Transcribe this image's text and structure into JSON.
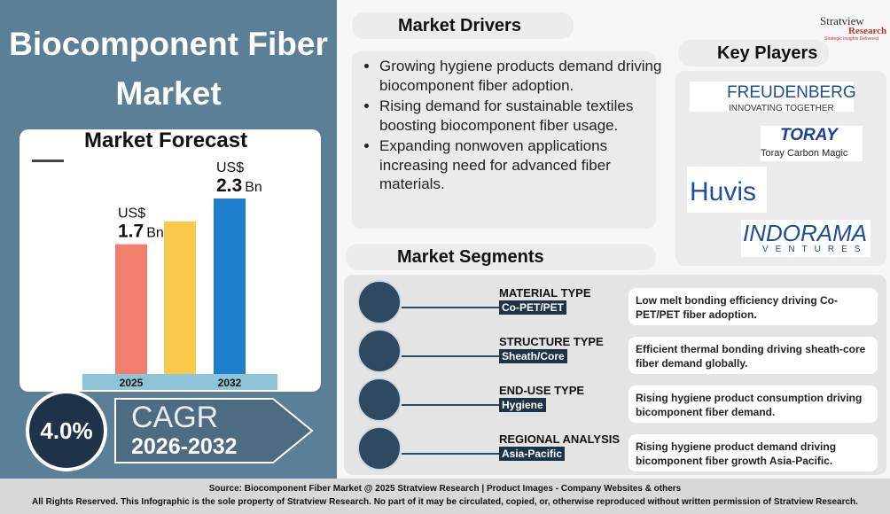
{
  "title": "Biocomponent Fiber Market",
  "chart_data": {
    "type": "bar",
    "title": "Market Forecast",
    "categories": [
      "2025",
      null,
      "2032"
    ],
    "values": [
      1.7,
      2.0,
      2.3
    ],
    "colors": [
      "#f07f6b",
      "#f9c94a",
      "#1f7fcf"
    ],
    "currency": "US$",
    "unit": "Bn"
  },
  "cagr": {
    "label": "CAGR",
    "value": "4.0%",
    "period": "2026-2032"
  },
  "brand": {
    "name": "Stratview",
    "sub": "Research",
    "tagline": "Strategic Insights Delivered"
  },
  "drivers": {
    "title": "Market Drivers",
    "items": [
      "Growing hygiene products demand driving biocomponent fiber adoption.",
      "Rising demand for sustainable textiles boosting biocomponent fiber usage.",
      "Expanding nonwoven applications increasing need for advanced fiber materials."
    ]
  },
  "key_players": {
    "title": "Key Players",
    "logos": [
      {
        "name": "FREUDENBERG",
        "tagline": "INNOVATING TOGETHER"
      },
      {
        "name": "TORAY",
        "tagline": "Toray Carbon Magic"
      },
      {
        "name": "Huvis"
      },
      {
        "name": "INDORAMA",
        "tagline": "VENTURES"
      }
    ]
  },
  "segments": {
    "title": "Market Segments",
    "items": [
      {
        "type": "MATERIAL TYPE",
        "value": "Co-PET/PET",
        "text": "Low melt bonding efficiency driving Co-PET/PET fiber adoption."
      },
      {
        "type": "STRUCTURE TYPE",
        "value": "Sheath/Core",
        "text": "Efficient thermal bonding driving sheath-core fiber demand globally."
      },
      {
        "type": "END-USE  TYPE",
        "value": "Hygiene",
        "text": "Rising hygiene product consumption driving bicomponent fiber demand."
      },
      {
        "type": "REGIONAL ANALYSIS",
        "value": "Asia-Pacific",
        "text": "Rising hygiene product demand driving bicomponent fiber growth Asia-Pacific."
      }
    ]
  },
  "footer": {
    "source": "Source: Biocomponent Fiber Market @ 2025 Stratview Research | Product Images  - Company Websites & others",
    "rights": "All Rights Reserved. This Infographic is the sole property of Stratview Research. No part of it may be circulated, copied, or, otherwise reproduced without written permission of Stratview Research."
  }
}
